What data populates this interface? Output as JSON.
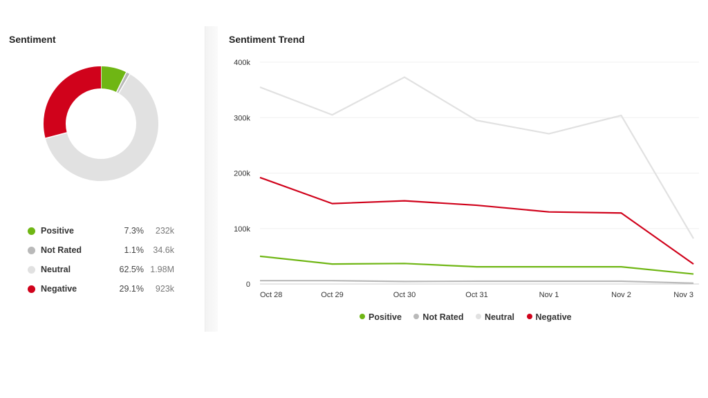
{
  "sentiment_panel": {
    "title": "Sentiment",
    "legend": [
      {
        "label": "Positive",
        "percent": "7.3%",
        "count": "232k",
        "color": "#6fb614"
      },
      {
        "label": "Not Rated",
        "percent": "1.1%",
        "count": "34.6k",
        "color": "#b9b9b9"
      },
      {
        "label": "Neutral",
        "percent": "62.5%",
        "count": "1.98M",
        "color": "#e1e1e1"
      },
      {
        "label": "Negative",
        "percent": "29.1%",
        "count": "923k",
        "color": "#d0021b"
      }
    ]
  },
  "trend_panel": {
    "title": "Sentiment Trend"
  },
  "chart_data": [
    {
      "type": "pie",
      "title": "Sentiment",
      "donut": true,
      "categories": [
        "Positive",
        "Not Rated",
        "Neutral",
        "Negative"
      ],
      "values": [
        7.3,
        1.1,
        62.5,
        29.1
      ],
      "colors": [
        "#6fb614",
        "#b9b9b9",
        "#e1e1e1",
        "#d0021b"
      ]
    },
    {
      "type": "line",
      "title": "Sentiment Trend",
      "x": [
        "Oct 28",
        "Oct 29",
        "Oct 30",
        "Oct 31",
        "Nov 1",
        "Nov 2",
        "Nov 3"
      ],
      "ylim": [
        0,
        400000
      ],
      "yticks": [
        0,
        100000,
        200000,
        300000,
        400000
      ],
      "ytick_labels": [
        "0",
        "100k",
        "200k",
        "300k",
        "400k"
      ],
      "grid": true,
      "legend_position": "bottom-center",
      "series": [
        {
          "name": "Positive",
          "color": "#6fb614",
          "values": [
            50000,
            36000,
            37000,
            31000,
            31000,
            31000,
            18000
          ]
        },
        {
          "name": "Not Rated",
          "color": "#b9b9b9",
          "values": [
            6000,
            6000,
            4500,
            5000,
            5000,
            5000,
            1500
          ]
        },
        {
          "name": "Neutral",
          "color": "#e1e1e1",
          "values": [
            355000,
            305000,
            373000,
            295000,
            271000,
            304000,
            82000
          ]
        },
        {
          "name": "Negative",
          "color": "#d0021b",
          "values": [
            192000,
            145000,
            150000,
            142000,
            130000,
            128000,
            36000
          ]
        }
      ]
    }
  ]
}
